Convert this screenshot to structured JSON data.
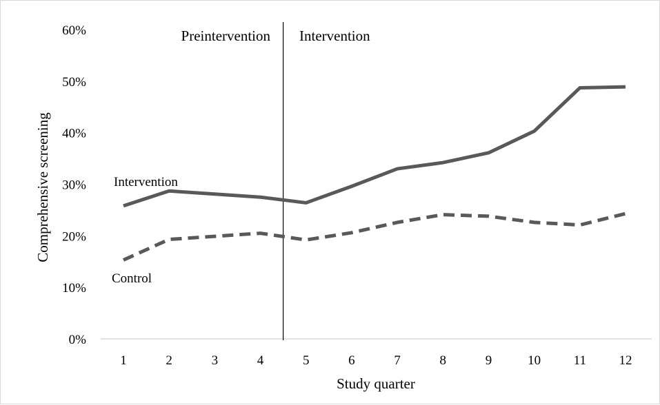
{
  "chart_data": {
    "type": "line",
    "title": "",
    "xlabel": "Study quarter",
    "ylabel": "Comprehensive screening",
    "categories": [
      "1",
      "2",
      "3",
      "4",
      "5",
      "6",
      "7",
      "8",
      "9",
      "10",
      "11",
      "12"
    ],
    "ylim": [
      0,
      60
    ],
    "yticks": [
      "0%",
      "10%",
      "20%",
      "30%",
      "40%",
      "50%",
      "60%"
    ],
    "yticks_values": [
      0,
      10,
      20,
      30,
      40,
      50,
      60
    ],
    "grid": false,
    "legend": "none",
    "series": [
      {
        "name": "Intervention",
        "style": "solid",
        "color": "#595959",
        "values": [
          25.8,
          28.7,
          28.1,
          27.5,
          26.4,
          29.6,
          33.0,
          34.2,
          36.1,
          40.3,
          48.7,
          48.9
        ]
      },
      {
        "name": "Control",
        "style": "dashed",
        "color": "#595959",
        "values": [
          15.3,
          19.3,
          19.9,
          20.5,
          19.2,
          20.6,
          22.6,
          24.1,
          23.8,
          22.6,
          22.1,
          24.3
        ]
      }
    ],
    "annotations": {
      "phase_divider_after_quarter": 4,
      "preintervention_label": "Preintervention",
      "intervention_label": "Intervention"
    }
  }
}
